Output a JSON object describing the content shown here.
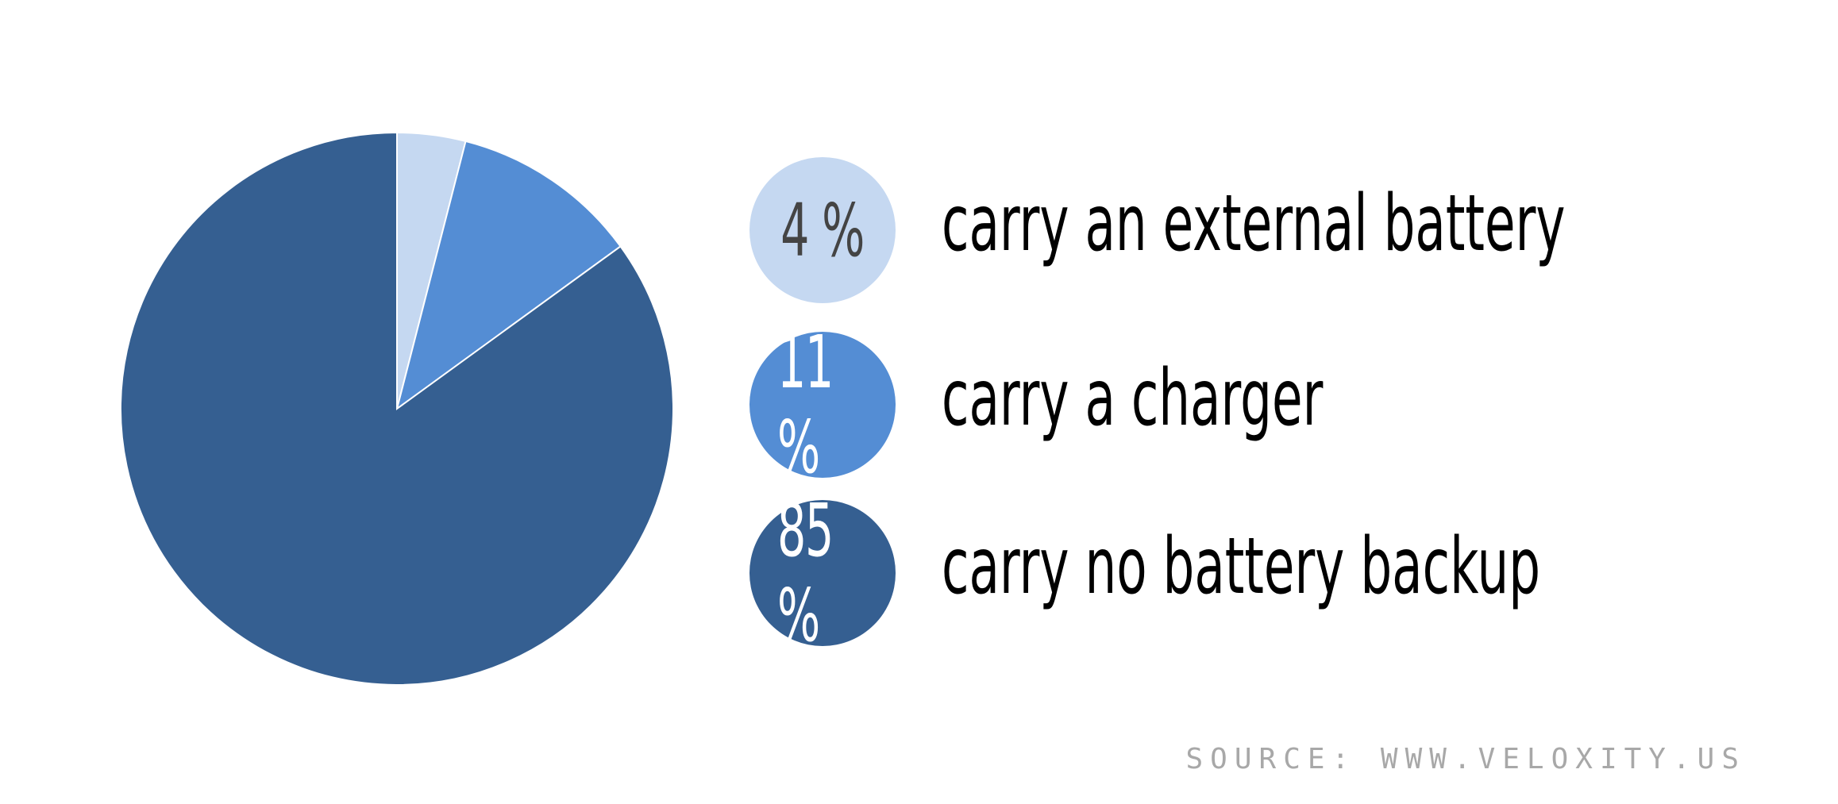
{
  "chart_data": {
    "type": "pie",
    "title": "",
    "unit": "%",
    "slices": [
      {
        "label": "carry an external battery",
        "value": 4,
        "display": "4 %",
        "color": "#c5d8f1",
        "badge_text_color": "#444444"
      },
      {
        "label": "carry a charger",
        "value": 11,
        "display": "11 %",
        "color": "#548dd4",
        "badge_text_color": "#ffffff"
      },
      {
        "label": "carry no battery backup",
        "value": 85,
        "display": "85 %",
        "color": "#355f91",
        "badge_text_color": "#ffffff"
      }
    ],
    "start_angle": "12 o'clock",
    "direction": "clockwise",
    "legend": "right"
  },
  "source": "SOURCE: WWW.VELOXITY.US"
}
